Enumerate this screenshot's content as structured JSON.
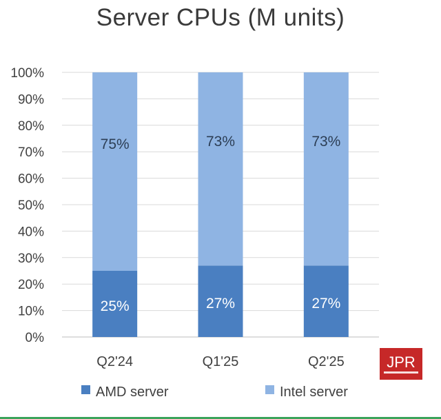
{
  "chart_data": {
    "type": "bar",
    "stacked": true,
    "title": "Server CPUs (M units)",
    "categories": [
      "Q2'24",
      "Q1'25",
      "Q2'25"
    ],
    "series": [
      {
        "name": "AMD server",
        "values": [
          25,
          27,
          27
        ],
        "labels": [
          "25%",
          "27%",
          "27%"
        ],
        "color": "#4a7fc1"
      },
      {
        "name": "Intel server",
        "values": [
          75,
          73,
          73
        ],
        "labels": [
          "75%",
          "73%",
          "73%"
        ],
        "color": "#8fb4e3"
      }
    ],
    "ylim": [
      0,
      100
    ],
    "yticks": [
      0,
      10,
      20,
      30,
      40,
      50,
      60,
      70,
      80,
      90,
      100
    ],
    "ytick_labels": [
      "0%",
      "10%",
      "20%",
      "30%",
      "40%",
      "50%",
      "60%",
      "70%",
      "80%",
      "90%",
      "100%"
    ],
    "grid": true,
    "legend_position": "bottom"
  },
  "logo": {
    "text": "JPR",
    "colors": {
      "background": "#c62828",
      "text": "#ffffff"
    }
  }
}
